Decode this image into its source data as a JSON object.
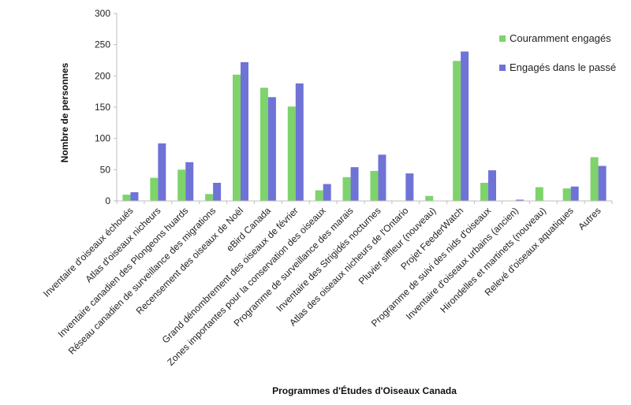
{
  "chart_data": {
    "type": "bar",
    "title": "",
    "xlabel": "Programmes d'Études d'Oiseaux Canada",
    "ylabel": "Nombre de personnes",
    "ylim": [
      0,
      300
    ],
    "yticks": [
      0,
      50,
      100,
      150,
      200,
      250,
      300
    ],
    "grid": false,
    "legend_position": "top-right",
    "categories": [
      "Inventaire d'oiseaux échoués",
      "Atlas d'oiseaux nicheurs",
      "Inventaire canadien des Plongeons huards",
      "Réseau canadien de surveillance des migrations",
      "Recensement des oiseaux de Noël",
      "eBird Canada",
      "Grand dénombrement des oiseaux de février",
      "Zones importantes pour la conservation des oiseaux",
      "Programme de surveillance des marais",
      "Inventaire des Strigidés nocturnes",
      "Atlas des oiseaux nicheurs de l'Ontario",
      "Pluvier siffleur (nouveau)",
      "Projet FeederWatch",
      "Programme de suivi des nids d'oiseaux",
      "Inventaire d'oiseaux urbains (ancien)",
      "Hirondelles et martinets (nouveau)",
      "Relevé d'oiseaux aquatiques",
      "Autres"
    ],
    "series": [
      {
        "name": "Couramment engagés",
        "color": "#7ed36b",
        "values": [
          10,
          37,
          50,
          11,
          202,
          181,
          151,
          17,
          38,
          48,
          0,
          8,
          224,
          29,
          0,
          22,
          20,
          70
        ]
      },
      {
        "name": "Engagés dans le passé",
        "color": "#6f73d6",
        "values": [
          14,
          92,
          62,
          29,
          222,
          166,
          188,
          27,
          54,
          74,
          44,
          0,
          239,
          49,
          2,
          0,
          23,
          56
        ]
      }
    ]
  }
}
